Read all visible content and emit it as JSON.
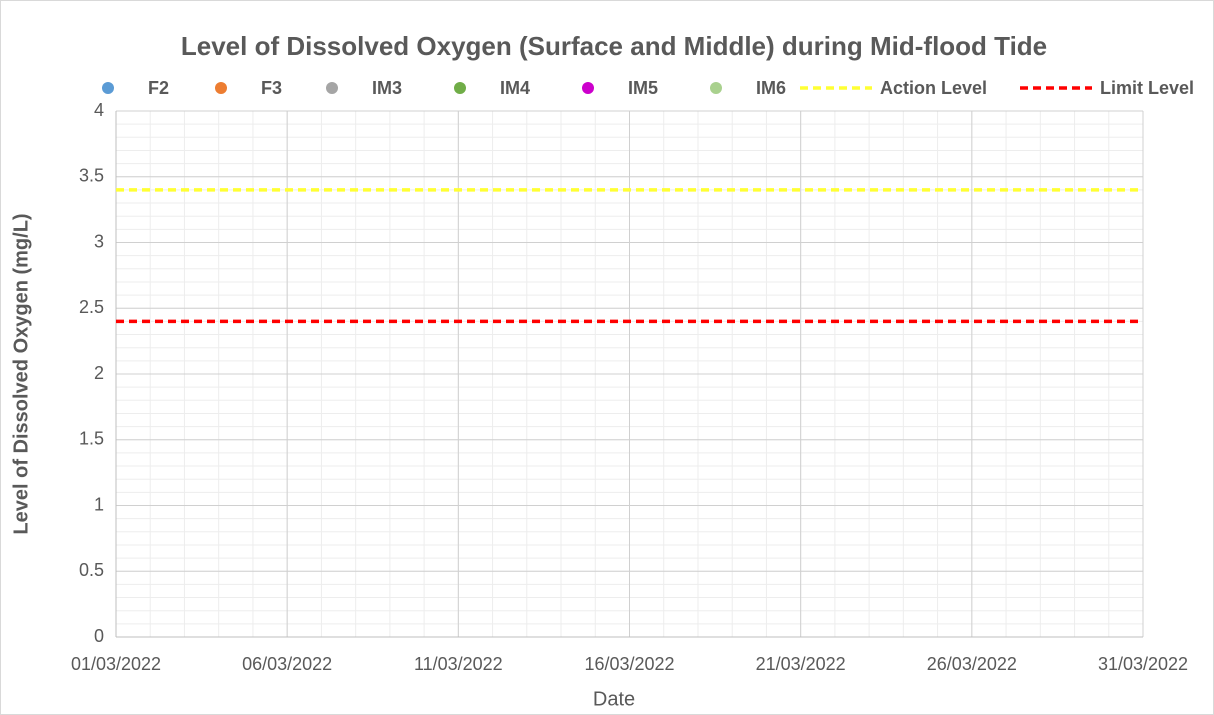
{
  "chart_data": {
    "type": "scatter",
    "title": "Level of Dissolved Oxygen (Surface and Middle) during Mid-flood Tide",
    "x_label": "Date",
    "y_label": "Level of Dissolved Oxygen (mg/L)",
    "xlim": [
      "01/03/2022",
      "31/03/2022"
    ],
    "xticks": [
      "01/03/2022",
      "06/03/2022",
      "11/03/2022",
      "16/03/2022",
      "21/03/2022",
      "26/03/2022",
      "31/03/2022"
    ],
    "ylim": [
      0,
      4
    ],
    "yticks": [
      0,
      0.5,
      1,
      1.5,
      2,
      2.5,
      3,
      3.5,
      4
    ],
    "grid": true,
    "series": [
      {
        "name": "F2",
        "color": "#5b9bd5",
        "style": "marker",
        "x": [],
        "values": []
      },
      {
        "name": "F3",
        "color": "#ed7d31",
        "style": "marker",
        "x": [],
        "values": []
      },
      {
        "name": "IM3",
        "color": "#a5a5a5",
        "style": "marker",
        "x": [],
        "values": []
      },
      {
        "name": "IM4",
        "color": "#70ad47",
        "style": "marker",
        "x": [],
        "values": []
      },
      {
        "name": "IM5",
        "color": "#cc00cc",
        "style": "marker",
        "x": [],
        "values": []
      },
      {
        "name": "IM6",
        "color": "#a9d18e",
        "style": "marker",
        "x": [],
        "values": []
      },
      {
        "name": "Action Level",
        "color": "#ffff33",
        "style": "dashed",
        "x": [
          "01/03/2022",
          "31/03/2022"
        ],
        "values": [
          3.4,
          3.4
        ]
      },
      {
        "name": "Limit Level",
        "color": "#ff0000",
        "style": "dashed",
        "x": [
          "01/03/2022",
          "31/03/2022"
        ],
        "values": [
          2.4,
          2.4
        ]
      }
    ]
  }
}
